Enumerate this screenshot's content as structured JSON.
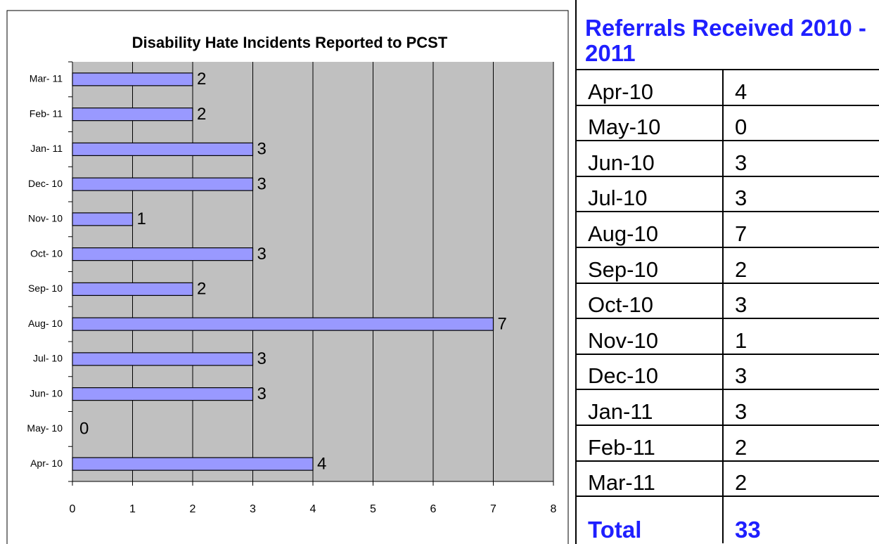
{
  "chart_data": {
    "type": "bar",
    "orientation": "horizontal",
    "title": "Disability Hate Incidents Reported to PCST",
    "categories": [
      "Apr- 10",
      "May- 10",
      "Jun- 10",
      "Jul- 10",
      "Aug- 10",
      "Sep- 10",
      "Oct- 10",
      "Nov- 10",
      "Dec- 10",
      "Jan- 11",
      "Feb- 11",
      "Mar- 11"
    ],
    "values": [
      4,
      0,
      3,
      3,
      7,
      2,
      3,
      1,
      3,
      3,
      2,
      2
    ],
    "color": "#9999ff",
    "xlim": [
      0,
      8
    ],
    "xticks": [
      0,
      1,
      2,
      3,
      4,
      5,
      6,
      7,
      8
    ],
    "grid": true
  },
  "table": {
    "title": "Referrals Received 2010 - 2011",
    "rows": [
      [
        "Apr-10",
        "4"
      ],
      [
        "May-10",
        "0"
      ],
      [
        "Jun-10",
        "3"
      ],
      [
        "Jul-10",
        "3"
      ],
      [
        "Aug-10",
        "7"
      ],
      [
        "Sep-10",
        "2"
      ],
      [
        "Oct-10",
        "3"
      ],
      [
        "Nov-10",
        "1"
      ],
      [
        "Dec-10",
        "3"
      ],
      [
        "Jan-11",
        "3"
      ],
      [
        "Feb-11",
        "2"
      ],
      [
        "Mar-11",
        "2"
      ]
    ],
    "total": [
      "Total",
      "33"
    ]
  }
}
